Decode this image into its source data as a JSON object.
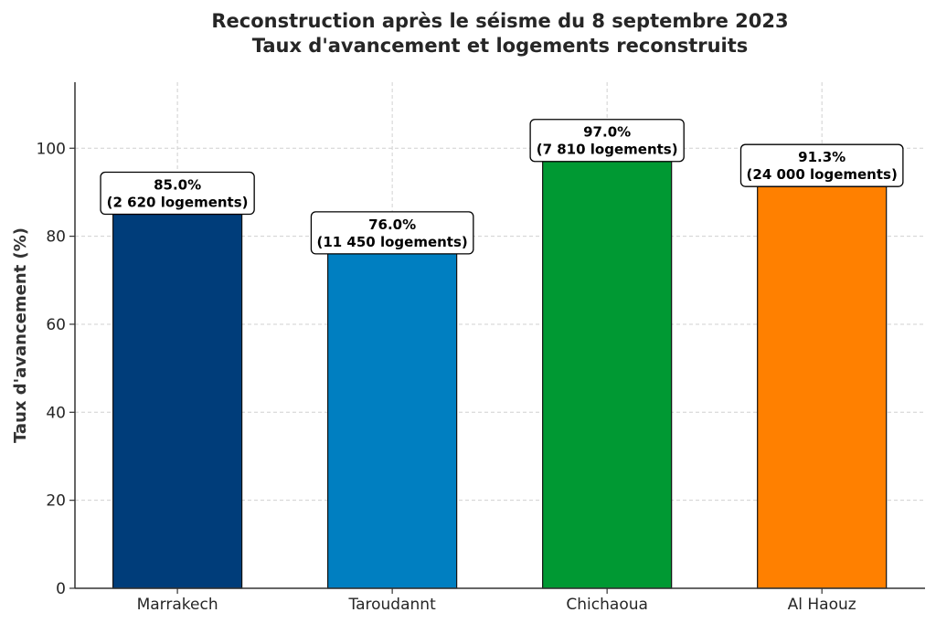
{
  "chart_data": {
    "type": "bar",
    "title": [
      "Reconstruction après le séisme du 8 septembre 2023",
      "Taux d'avancement et logements reconstruits"
    ],
    "xlabel": "",
    "ylabel": "Taux d'avancement (%)",
    "categories": [
      "Marrakech",
      "Taroudannt",
      "Chichaoua",
      "Al Haouz"
    ],
    "values": [
      85.0,
      76.0,
      97.0,
      91.3
    ],
    "data_labels": [
      [
        "85.0%",
        "(2 620 logements)"
      ],
      [
        "76.0%",
        "(11 450 logements)"
      ],
      [
        "97.0%",
        "(7 810 logements)"
      ],
      [
        "91.3%",
        "(24 000 logements)"
      ]
    ],
    "logements": [
      2620,
      11450,
      7810,
      24000
    ],
    "colors": [
      "#003d7a",
      "#007fc1",
      "#009933",
      "#ff8000"
    ],
    "ylim": [
      0,
      115
    ],
    "yticks": [
      0,
      20,
      40,
      60,
      80,
      100
    ],
    "grid": true,
    "legend": "none"
  }
}
